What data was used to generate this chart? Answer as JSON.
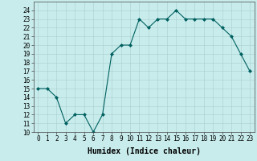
{
  "x": [
    0,
    1,
    2,
    3,
    4,
    5,
    6,
    7,
    8,
    9,
    10,
    11,
    12,
    13,
    14,
    15,
    16,
    17,
    18,
    19,
    20,
    21,
    22,
    23
  ],
  "y": [
    15,
    15,
    14,
    11,
    12,
    12,
    10,
    12,
    19,
    20,
    20,
    23,
    22,
    23,
    23,
    24,
    23,
    23,
    23,
    23,
    22,
    21,
    19,
    17
  ],
  "line_color": "#006060",
  "marker": "D",
  "marker_size": 2.0,
  "bg_color": "#c8ecec",
  "grid_color": "#aacccc",
  "xlabel": "Humidex (Indice chaleur)",
  "ylim": [
    10,
    25
  ],
  "xlim": [
    -0.5,
    23.5
  ],
  "yticks": [
    10,
    11,
    12,
    13,
    14,
    15,
    16,
    17,
    18,
    19,
    20,
    21,
    22,
    23,
    24
  ],
  "xticks": [
    0,
    1,
    2,
    3,
    4,
    5,
    6,
    7,
    8,
    9,
    10,
    11,
    12,
    13,
    14,
    15,
    16,
    17,
    18,
    19,
    20,
    21,
    22,
    23
  ],
  "tick_fontsize": 5.5,
  "xlabel_fontsize": 7.0,
  "linewidth": 0.8
}
